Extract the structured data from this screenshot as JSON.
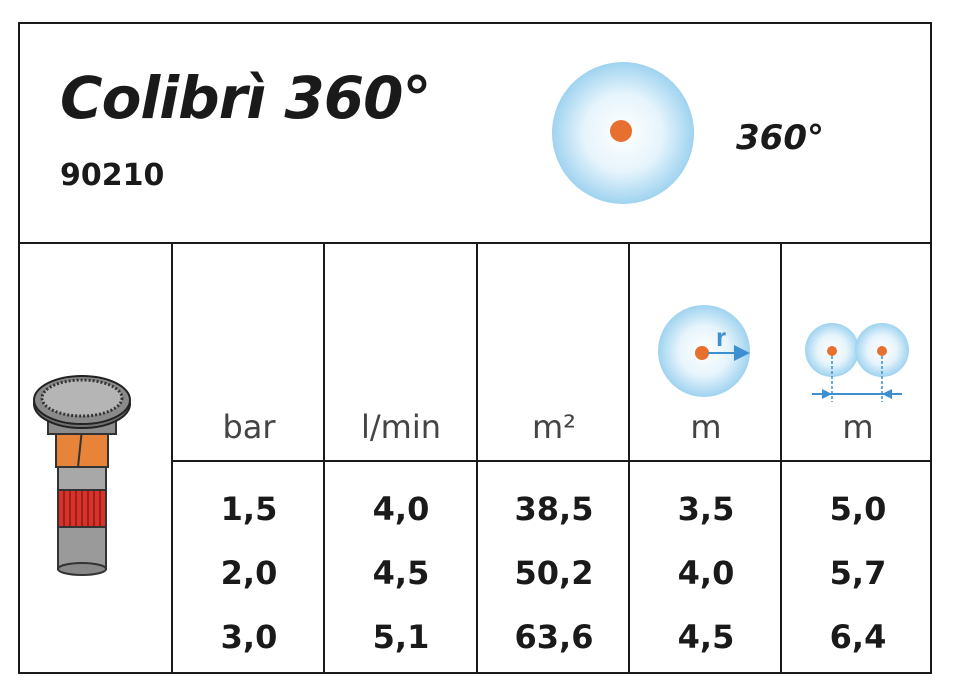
{
  "header": {
    "title": "Colibrì 360°",
    "code": "90210",
    "arc_label": "360°"
  },
  "table": {
    "units": [
      "bar",
      "l/min",
      "m²",
      "m",
      "m"
    ],
    "rows": [
      [
        "1,5",
        "4,0",
        "38,5",
        "3,5",
        "5,0"
      ],
      [
        "2,0",
        "4,5",
        "50,2",
        "4,0",
        "5,7"
      ],
      [
        "3,0",
        "5,1",
        "63,6",
        "4,5",
        "6,4"
      ]
    ],
    "radius_symbol": "r"
  },
  "colors": {
    "spray_blue": "#a9d8f2",
    "nozzle_orange": "#e8702e",
    "arrow_blue": "#3d8fd0",
    "ring_red": "#d8322a"
  }
}
